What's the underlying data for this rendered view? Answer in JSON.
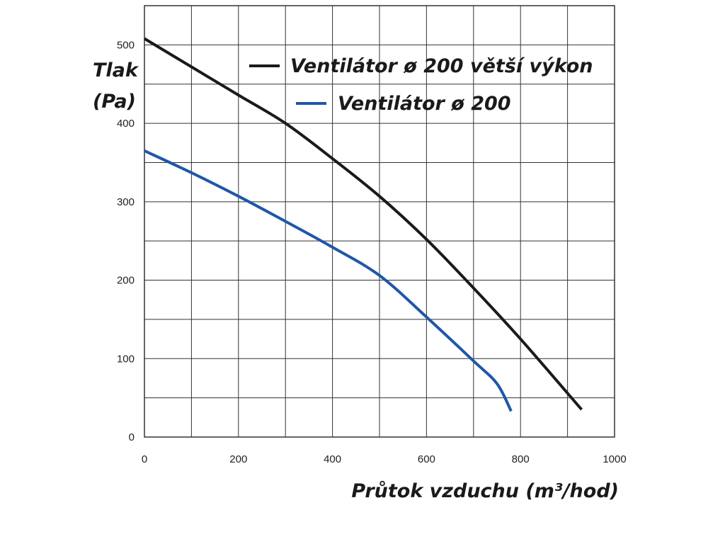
{
  "chart_data": {
    "type": "line",
    "xlabel": "Průtok vzduchu (m³/hod)",
    "ylabel_line1": "Tlak",
    "ylabel_line2": "(Pa)",
    "xlim": [
      0,
      1000
    ],
    "ylim": [
      0,
      550
    ],
    "x_ticks": [
      "0",
      "200",
      "400",
      "600",
      "800",
      "1000"
    ],
    "y_ticks": [
      "0",
      "100",
      "200",
      "300",
      "400",
      "500"
    ],
    "grid": true,
    "x_grid_step": 100,
    "y_grid_step": 50,
    "legend_position": "top-right",
    "series": [
      {
        "name": "Ventilátor ø 200 větší výkon",
        "color": "#1a1a1a",
        "x": [
          0,
          100,
          200,
          300,
          400,
          500,
          600,
          700,
          800,
          930
        ],
        "y": [
          508,
          472,
          436,
          400,
          355,
          307,
          252,
          190,
          125,
          35
        ]
      },
      {
        "name": "Ventilátor ø 200",
        "color": "#1f57a8",
        "x": [
          0,
          100,
          200,
          300,
          400,
          500,
          600,
          700,
          750,
          780
        ],
        "y": [
          365,
          337,
          307,
          275,
          242,
          206,
          153,
          97,
          68,
          33
        ]
      }
    ]
  }
}
